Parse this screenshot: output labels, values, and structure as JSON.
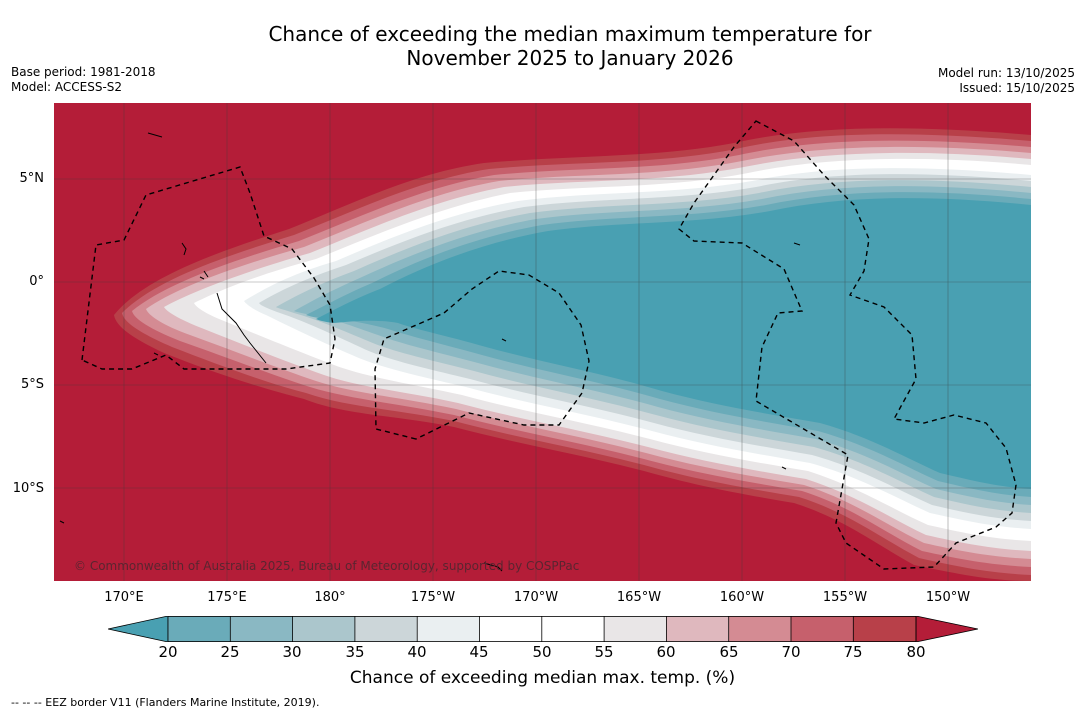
{
  "title_line1": "Chance of exceeding the median maximum temperature for",
  "title_line2": "November 2025 to January 2026",
  "base_period": "Base period: 1981-2018",
  "model": "Model: ACCESS-S2",
  "model_run": "Model run: 13/10/2025",
  "issued": "Issued: 15/10/2025",
  "copyright": "© Commonwealth of Australia 2025, Bureau of Meteorology, supported by COSPPac",
  "lat_labels": [
    "5°N",
    "0°",
    "5°S",
    "10°S"
  ],
  "lon_labels": [
    "170°E",
    "175°E",
    "180°",
    "175°W",
    "170°W",
    "165°W",
    "160°W",
    "155°W",
    "150°W"
  ],
  "colorbar": {
    "label": "Chance of exceeding median max. temp. (%)",
    "ticks": [
      "20",
      "25",
      "30",
      "35",
      "40",
      "45",
      "50",
      "55",
      "60",
      "65",
      "70",
      "75",
      "80"
    ],
    "colors": [
      "#49a0b2",
      "#6aabb9",
      "#8ab8c3",
      "#abc6cc",
      "#ccd6d9",
      "#eaeff1",
      "#ffffff",
      "#ffffff",
      "#e9e6e7",
      "#dfb8be",
      "#d48b93",
      "#c6606c",
      "#b84049",
      "#b41d38"
    ],
    "under_color": "#49a0b2",
    "over_color": "#b41d38"
  },
  "footer": "--  --  -- EEZ border V11 (Flanders Marine Institute, 2019)."
}
